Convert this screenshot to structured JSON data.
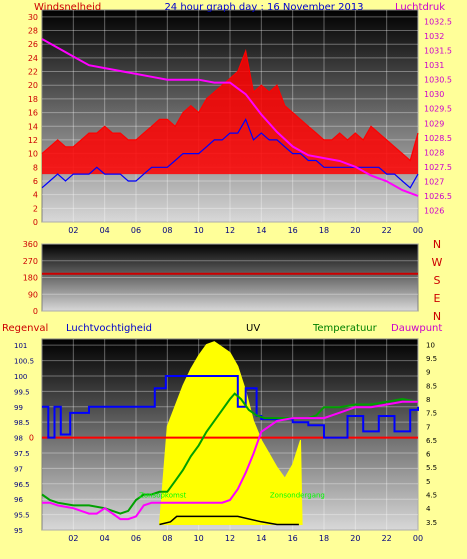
{
  "chart_data": [
    {
      "type": "line",
      "title": "24 hour graph day : 16 November 2013",
      "ylabel": "Windsnelheid",
      "ylabel2": "Luchtdruk",
      "ylim": [
        0,
        31
      ],
      "yticks": [
        0,
        2,
        4,
        6,
        8,
        10,
        12,
        14,
        16,
        18,
        20,
        22,
        24,
        26,
        28,
        30
      ],
      "y2lim": [
        1025.6,
        1032.9
      ],
      "y2ticks": [
        1026,
        1026.5,
        1027,
        1027.5,
        1028,
        1028.5,
        1029,
        1029.5,
        1030,
        1030.5,
        1031,
        1031.5,
        1032,
        1032.5
      ],
      "xticks": [
        "02",
        "04",
        "06",
        "08",
        "10",
        "12",
        "14",
        "16",
        "18",
        "20",
        "22",
        "00"
      ],
      "series": [
        {
          "color": "#ff0000",
          "x": [
            0,
            0.5,
            1,
            1.5,
            2,
            2.5,
            3,
            3.5,
            4,
            4.5,
            5,
            5.5,
            6,
            6.5,
            7,
            7.5,
            8,
            8.5,
            9,
            9.5,
            10,
            10.5,
            11,
            11.5,
            12,
            12.5,
            13,
            13.5,
            14,
            14.5,
            15,
            15.5,
            16,
            16.5,
            17,
            17.5,
            18,
            18.5,
            19,
            19.5,
            20,
            20.5,
            21,
            21.5,
            22,
            22.5,
            23,
            23.5,
            24
          ],
          "values": [
            10,
            11,
            12,
            11,
            11,
            12,
            13,
            13,
            14,
            13,
            13,
            12,
            12,
            13,
            14,
            15,
            15,
            14,
            16,
            17,
            16,
            18,
            19,
            20,
            21,
            22,
            25,
            19,
            20,
            19,
            20,
            17,
            16,
            15,
            14,
            13,
            12,
            12,
            13,
            12,
            13,
            12,
            14,
            13,
            12,
            11,
            10,
            9,
            13
          ]
        },
        {
          "color": "#0000ff",
          "x": [
            0,
            0.5,
            1,
            1.5,
            2,
            2.5,
            3,
            3.5,
            4,
            4.5,
            5,
            5.5,
            6,
            6.5,
            7,
            7.5,
            8,
            8.5,
            9,
            9.5,
            10,
            10.5,
            11,
            11.5,
            12,
            12.5,
            13,
            13.5,
            14,
            14.5,
            15,
            15.5,
            16,
            16.5,
            17,
            17.5,
            18,
            18.5,
            19,
            19.5,
            20,
            20.5,
            21,
            21.5,
            22,
            22.5,
            23,
            23.5,
            24
          ],
          "values": [
            5,
            6,
            7,
            6,
            7,
            7,
            7,
            8,
            7,
            7,
            7,
            6,
            6,
            7,
            8,
            8,
            8,
            9,
            10,
            10,
            10,
            11,
            12,
            12,
            13,
            13,
            15,
            12,
            13,
            12,
            12,
            11,
            10,
            10,
            9,
            9,
            8,
            8,
            8,
            8,
            8,
            8,
            8,
            8,
            7,
            7,
            6,
            5,
            7
          ]
        },
        {
          "color": "#ff00ff",
          "axis": "right",
          "x": [
            0,
            1,
            2,
            3,
            4,
            5,
            6,
            7,
            8,
            9,
            10,
            11,
            12,
            12.5,
            13,
            14,
            15,
            16,
            17,
            18,
            19,
            20,
            21,
            22,
            23,
            24
          ],
          "values": [
            1031.9,
            1031.6,
            1031.3,
            1031.0,
            1030.9,
            1030.8,
            1030.7,
            1030.6,
            1030.5,
            1030.5,
            1030.5,
            1030.4,
            1030.4,
            1030.2,
            1030.0,
            1029.3,
            1028.7,
            1028.2,
            1027.9,
            1027.8,
            1027.7,
            1027.5,
            1027.2,
            1027.0,
            1026.7,
            1026.5
          ]
        }
      ]
    },
    {
      "type": "line",
      "ylim": [
        0,
        360
      ],
      "yticks": [
        0,
        90,
        180,
        270,
        360
      ],
      "compass_labels": [
        "N",
        "W",
        "S",
        "E",
        "N"
      ],
      "series": [
        {
          "color": "#cc0000",
          "x": [
            0,
            24
          ],
          "values": [
            200,
            200
          ]
        }
      ]
    },
    {
      "type": "line",
      "labels": {
        "left": "Regenval",
        "humidity": "Luchtvochtigheid",
        "uv": "UV",
        "temperature": "Temperatuur",
        "dewpoint": "Dauwpunt"
      },
      "ylim": [
        95,
        101.2
      ],
      "yticks": [
        95,
        95.5,
        96,
        96.5,
        97,
        97.5,
        98,
        98.5,
        99,
        99.5,
        100,
        100.5,
        101
      ],
      "ylabel_rain_zero": "0",
      "y2lim": [
        3.2,
        10.2
      ],
      "y2ticks": [
        3.5,
        4,
        4.5,
        5,
        5.5,
        6,
        6.5,
        7,
        7.5,
        8,
        8.5,
        9,
        9.5,
        10
      ],
      "xticks": [
        "02",
        "04",
        "06",
        "08",
        "10",
        "12",
        "14",
        "16",
        "18",
        "20",
        "22",
        "00"
      ],
      "annotations": [
        "Zonsopkomst",
        "Zonsondergang"
      ],
      "series": [
        {
          "color": "#0000ff",
          "axis": "left",
          "x": [
            0,
            0.4,
            0.8,
            1.2,
            1.8,
            3.0,
            3.6,
            6.5,
            7.2,
            7.9,
            9.0,
            12.0,
            12.5,
            13.0,
            13.7,
            14.0,
            15.0,
            16.0,
            17.0,
            18.0,
            19.5,
            20.5,
            21.5,
            22.5,
            23.5,
            24
          ],
          "values": [
            99.0,
            98.0,
            99.0,
            98.1,
            98.8,
            99.0,
            99.0,
            99.0,
            99.6,
            100.0,
            100.0,
            100.0,
            99.0,
            99.6,
            98.7,
            98.6,
            98.6,
            98.5,
            98.4,
            98.0,
            98.7,
            98.2,
            98.7,
            98.2,
            98.9,
            99.0
          ]
        },
        {
          "color": "#ffff00",
          "axis": "right",
          "x": [
            7.5,
            8,
            9,
            9.5,
            10,
            10.5,
            11,
            11.5,
            12,
            12.5,
            13,
            13.5,
            14,
            14.5,
            15,
            15.5,
            16,
            16.5,
            16.6
          ],
          "values": [
            3.4,
            7.0,
            8.5,
            9.1,
            9.6,
            10.0,
            10.1,
            9.9,
            9.7,
            9.2,
            8.3,
            7.2,
            6.5,
            6.0,
            5.5,
            5.1,
            5.6,
            6.5,
            3.4
          ]
        },
        {
          "color": "#ffff00",
          "axis": "right",
          "x": [
            7.5,
            8.2,
            8.6,
            11.0,
            11.8,
            12.5,
            14.0,
            15.0,
            16.0,
            16.4
          ],
          "values": [
            3.4,
            3.5,
            3.7,
            3.7,
            3.7,
            3.7,
            3.5,
            3.4,
            3.4,
            3.4
          ]
        },
        {
          "color": "#00a000",
          "axis": "right",
          "x": [
            0,
            0.5,
            1,
            2,
            3,
            4,
            5,
            5.5,
            6,
            6.5,
            7,
            7.5,
            8,
            8.5,
            9,
            9.5,
            10,
            10.5,
            11,
            11.5,
            12,
            12.3,
            12.7,
            13.2,
            13.7,
            14.2,
            15,
            16,
            17,
            17.5,
            18,
            19,
            20,
            21,
            22,
            23,
            24
          ],
          "values": [
            4.5,
            4.3,
            4.2,
            4.1,
            4.1,
            4.0,
            3.8,
            3.9,
            4.3,
            4.5,
            4.5,
            4.6,
            4.6,
            5.0,
            5.4,
            5.9,
            6.3,
            6.8,
            7.2,
            7.6,
            8.0,
            8.2,
            8.0,
            7.6,
            7.4,
            7.3,
            7.3,
            7.3,
            7.3,
            7.4,
            7.7,
            7.7,
            7.8,
            7.8,
            7.9,
            8.0,
            7.9
          ]
        },
        {
          "color": "#ff00ff",
          "axis": "right",
          "x": [
            0,
            0.5,
            1,
            2,
            2.5,
            3,
            3.5,
            4,
            4.5,
            5,
            5.5,
            6,
            6.5,
            7,
            7.5,
            8,
            9,
            10,
            11,
            11.5,
            12,
            12.5,
            13,
            13.5,
            14,
            15,
            16,
            17,
            17.5,
            18,
            19,
            20,
            21,
            22,
            23,
            24
          ],
          "values": [
            4.2,
            4.2,
            4.1,
            4.0,
            3.9,
            3.8,
            3.8,
            4.0,
            3.8,
            3.6,
            3.6,
            3.7,
            4.1,
            4.2,
            4.2,
            4.2,
            4.2,
            4.2,
            4.2,
            4.2,
            4.3,
            4.7,
            5.3,
            6.0,
            6.8,
            7.2,
            7.3,
            7.3,
            7.3,
            7.3,
            7.5,
            7.7,
            7.7,
            7.8,
            7.9,
            7.9
          ]
        },
        {
          "color": "#ff0000",
          "axis": "rain",
          "x": [
            0,
            24
          ],
          "values": [
            0,
            0
          ]
        }
      ]
    }
  ]
}
